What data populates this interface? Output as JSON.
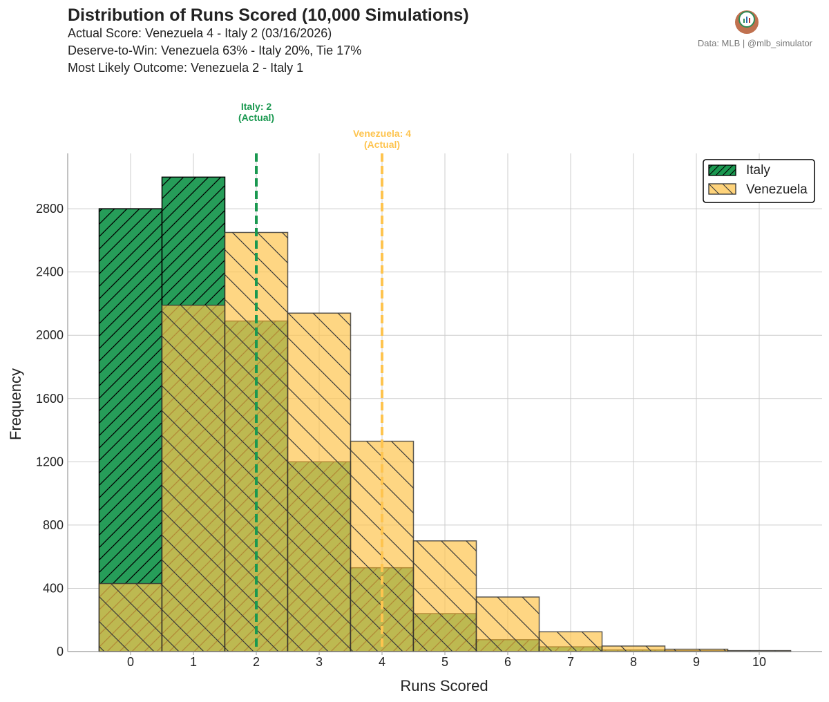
{
  "header": {
    "title": "Distribution of Runs Scored (10,000 Simulations)",
    "subtitle_1": "Actual Score: Venezuela 4 - Italy 2  (03/16/2026)",
    "subtitle_2": "Deserve-to-Win: Venezuela 63% - Italy 20%, Tie 17%",
    "subtitle_3": "Most Likely Outcome: Venezuela 2 - Italy 1",
    "credit": "Data: MLB  |  @mlb_simulator"
  },
  "chart_data": {
    "type": "bar",
    "title": "Distribution of Runs Scored (10,000 Simulations)",
    "xlabel": "Runs Scored",
    "ylabel": "Frequency",
    "categories": [
      "0",
      "1",
      "2",
      "3",
      "4",
      "5",
      "6",
      "7",
      "8",
      "9",
      "10"
    ],
    "xlim": [
      -1,
      11
    ],
    "ylim": [
      0,
      3150
    ],
    "yticks": [
      0,
      400,
      800,
      1200,
      1600,
      2000,
      2400,
      2800
    ],
    "ytick_labels": [
      "0",
      "400",
      "800",
      "1200",
      "1600",
      "2000",
      "2400",
      "2800"
    ],
    "grid": true,
    "legend_position": "top-right",
    "series": [
      {
        "name": "Italy",
        "color": "#1a9850",
        "values": [
          2800,
          3000,
          2090,
          1200,
          530,
          240,
          75,
          30,
          10,
          5,
          2
        ]
      },
      {
        "name": "Venezuela",
        "color": "#fec44f",
        "values": [
          430,
          2190,
          2650,
          2140,
          1330,
          700,
          345,
          125,
          35,
          15,
          6
        ]
      }
    ],
    "actual_lines": [
      {
        "team": "Italy",
        "value": 2,
        "label_line1": "Italy: 2",
        "label_line2": "(Actual)",
        "color": "#1a9850"
      },
      {
        "team": "Venezuela",
        "value": 4,
        "label_line1": "Venezuela: 4",
        "label_line2": "(Actual)",
        "color": "#fec44f"
      }
    ]
  }
}
